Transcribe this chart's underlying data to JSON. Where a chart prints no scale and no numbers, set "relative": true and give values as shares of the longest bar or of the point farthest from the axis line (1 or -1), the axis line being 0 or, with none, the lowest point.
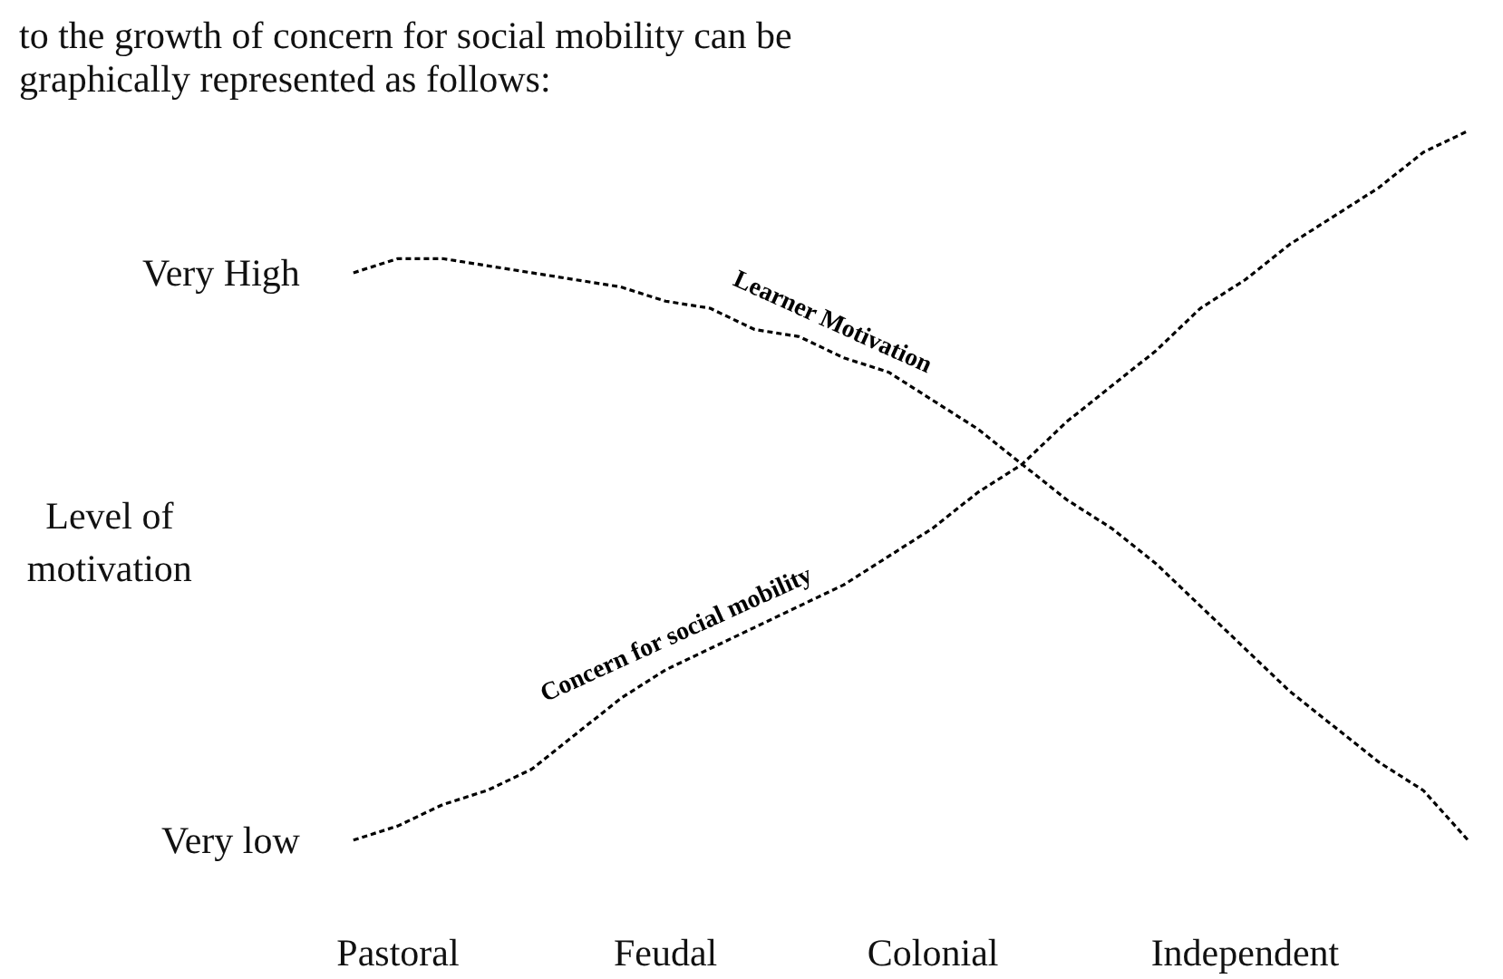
{
  "chart_data": {
    "type": "line",
    "title": "to the growth of concern for social mobility can be graphically represented as follows:",
    "ylabel": "Level of motivation",
    "relative": true,
    "annotations": [
      "Very High",
      "Very low"
    ],
    "categories": [
      null,
      "Pastoral",
      null,
      null,
      null,
      null,
      null,
      "Feudal",
      null,
      null,
      null,
      null,
      null,
      "Colonial",
      null,
      null,
      null,
      null,
      null,
      null,
      "Independent",
      null,
      null,
      null,
      null,
      null
    ],
    "grid": false,
    "legend": false,
    "marker": "none",
    "line_style": "dashed",
    "series": [
      {
        "name": "Learner Motivation",
        "color": "#000000",
        "values": [
          0.8,
          0.82,
          0.82,
          0.81,
          0.8,
          0.79,
          0.78,
          0.76,
          0.75,
          0.72,
          0.71,
          0.68,
          0.66,
          0.62,
          0.58,
          0.53,
          0.48,
          0.44,
          0.39,
          0.33,
          0.27,
          0.21,
          0.16,
          0.11,
          0.07,
          0
        ]
      },
      {
        "name": "Concern for social mobility",
        "color": "#000000",
        "values": [
          0,
          0.02,
          0.05,
          0.07,
          0.1,
          0.15,
          0.2,
          0.24,
          0.27,
          0.3,
          0.33,
          0.36,
          0.4,
          0.44,
          0.49,
          0.53,
          0.59,
          0.64,
          0.69,
          0.75,
          0.79,
          0.84,
          0.88,
          0.92,
          0.97,
          1
        ]
      }
    ]
  }
}
